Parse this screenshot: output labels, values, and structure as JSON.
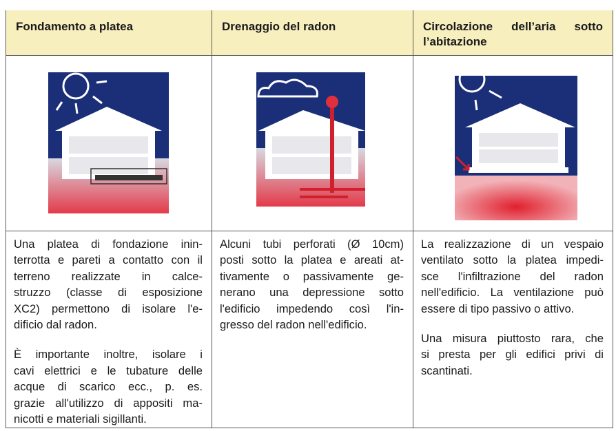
{
  "table": {
    "columns": [
      {
        "header": [
          "Fondamento a platea"
        ],
        "body": [
          [
            "Una platea di fondazione inin-",
            "terrotta e pareti a contatto con il",
            "terreno realizzate in calce-",
            "struzzo (classe di esposizione",
            "XC2) permettono di isolare l'e-",
            "dificio dal radon."
          ],
          [
            "È importante inoltre, isolare i",
            "cavi elettrici e le tubature delle",
            "acque di scarico ecc., p. es.",
            "grazie all'utilizzo di appositi ma-",
            "nicotti e materiali sigillanti."
          ]
        ]
      },
      {
        "header": [
          "Drenaggio del radon"
        ],
        "body": [
          [
            "Alcuni tubi perforati (Ø 10cm)",
            "posti sotto la platea e areati at-",
            "tivamente o passivamente ge-",
            "nerano una depressione sotto",
            "l'edificio impedendo così l'in-",
            "gresso del radon nell'edificio."
          ]
        ]
      },
      {
        "header": [
          "Circolazione dell’aria sotto",
          "l’abitazione"
        ],
        "body": [
          [
            "La realizzazione di un vespaio",
            "ventilato sotto la platea impedi-",
            "sce l'infiltrazione del radon",
            "nell'edificio. La ventilazione può",
            "essere di tipo passivo o attivo."
          ],
          [
            "Una misura piuttosto rara, che",
            "si presta per gli edifici privi di",
            "scantinati."
          ]
        ]
      }
    ]
  }
}
